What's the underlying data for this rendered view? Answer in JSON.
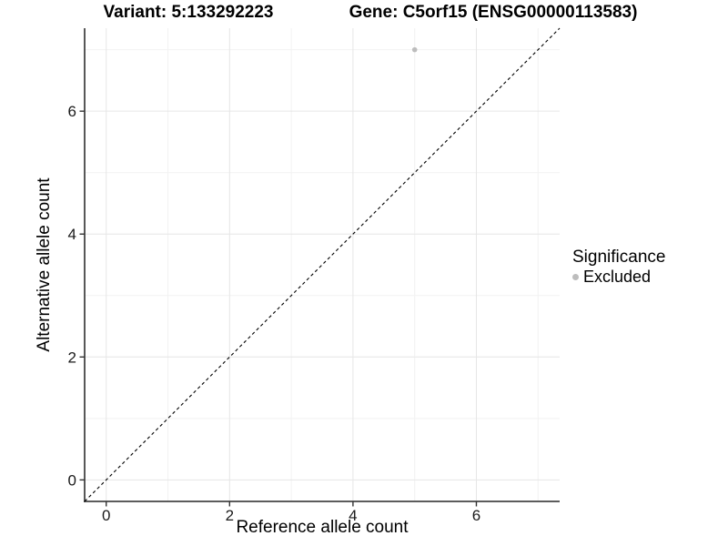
{
  "chart_data": {
    "type": "scatter",
    "titles": {
      "left": "Variant: 5:133292223",
      "right": "Gene: C5orf15 (ENSG00000113583)"
    },
    "xlabel": "Reference allele count",
    "ylabel": "Alternative allele count",
    "xlim": [
      -0.35,
      7.35
    ],
    "ylim": [
      -0.35,
      7.35
    ],
    "xticks": [
      0,
      2,
      4,
      6
    ],
    "yticks": [
      0,
      2,
      4,
      6
    ],
    "minor_gridlines_x": [
      1,
      3,
      5,
      7
    ],
    "minor_gridlines_y": [
      1,
      3,
      5,
      7
    ],
    "grid": true,
    "points": [
      {
        "x": 5,
        "y": 7,
        "significance": "Excluded"
      }
    ],
    "identity_line": {
      "style": "dashed",
      "equation": "y = x",
      "from": [
        -0.35,
        -0.35
      ],
      "to": [
        7.35,
        7.35
      ]
    },
    "legend": {
      "title": "Significance",
      "position": "right",
      "entries": [
        {
          "label": "Excluded",
          "color": "#bdbdbd",
          "marker": "circle"
        }
      ]
    },
    "colors": {
      "point": "#bdbdbd",
      "grid_major": "#e6e6e6",
      "grid_minor": "#f2f2f2",
      "axis_line": "#454545",
      "tick": "#333333",
      "identity_line": "#000000",
      "text": "#000000"
    }
  }
}
